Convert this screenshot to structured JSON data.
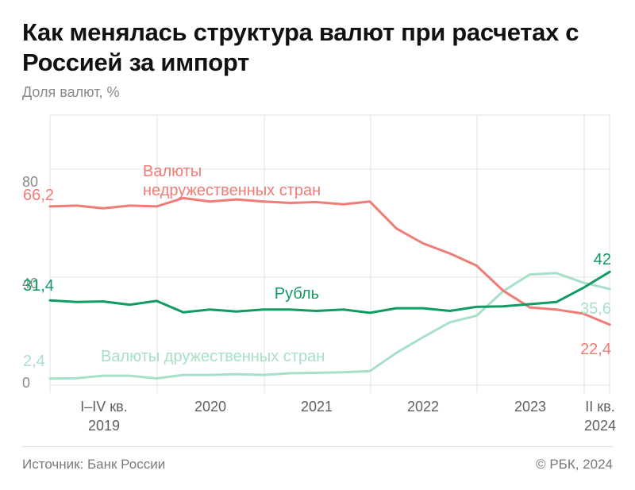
{
  "title": "Как менялась структура валют при расчетах с Россией за импорт",
  "ylabel": "Доля валют, %",
  "source": "Источник: Банк России",
  "copyright": "© РБК, 2024",
  "colors": {
    "unfriendly": "#f07c77",
    "ruble": "#0f9b64",
    "friendly": "#a8dfc7",
    "grid": "#e2e2e2",
    "tick_text": "#8a8a8a",
    "axis_text": "#5f5f5f"
  },
  "chart_data": {
    "type": "line",
    "ylim": [
      0,
      100
    ],
    "yticks": [
      0,
      40,
      80
    ],
    "grid": true,
    "x_ticks": [
      {
        "lines": [
          "I–IV кв.",
          "2019"
        ]
      },
      {
        "lines": [
          "2020"
        ]
      },
      {
        "lines": [
          "2021"
        ]
      },
      {
        "lines": [
          "2022"
        ]
      },
      {
        "lines": [
          "2023"
        ]
      },
      {
        "lines": [
          "II кв.",
          "2024"
        ]
      }
    ],
    "series": [
      {
        "name": "Валюты недружественных стран",
        "label_lines": [
          "Валюты",
          "недружественных стран"
        ],
        "color_key": "unfriendly",
        "start_label": "66,2",
        "end_label": "22,4",
        "values": [
          66.2,
          66.5,
          65.5,
          66.5,
          66.2,
          69.3,
          68.0,
          68.8,
          68.0,
          67.5,
          67.8,
          67.0,
          68.0,
          58.0,
          52.5,
          48.8,
          44.3,
          35.0,
          28.8,
          28.0,
          26.5,
          22.4
        ]
      },
      {
        "name": "Рубль",
        "label_lines": [
          "Рубль"
        ],
        "color_key": "ruble",
        "start_label": "31,4",
        "end_label": "42",
        "values": [
          31.4,
          30.8,
          31.0,
          29.8,
          31.2,
          27.0,
          28.0,
          27.3,
          28.0,
          28.0,
          27.5,
          28.0,
          26.8,
          28.5,
          28.5,
          27.5,
          29.0,
          29.2,
          30.0,
          30.8,
          36.0,
          42.0
        ]
      },
      {
        "name": "Валюты дружественных стран",
        "label_lines": [
          "Валюты дружественных стран"
        ],
        "color_key": "friendly",
        "start_label": "2,4",
        "end_label": "35,6",
        "values": [
          2.4,
          2.6,
          3.5,
          3.5,
          2.5,
          3.8,
          3.8,
          4.1,
          3.8,
          4.4,
          4.6,
          4.8,
          5.2,
          12.0,
          17.8,
          23.3,
          25.7,
          34.8,
          41.0,
          41.5,
          38.0,
          35.6
        ]
      }
    ]
  }
}
